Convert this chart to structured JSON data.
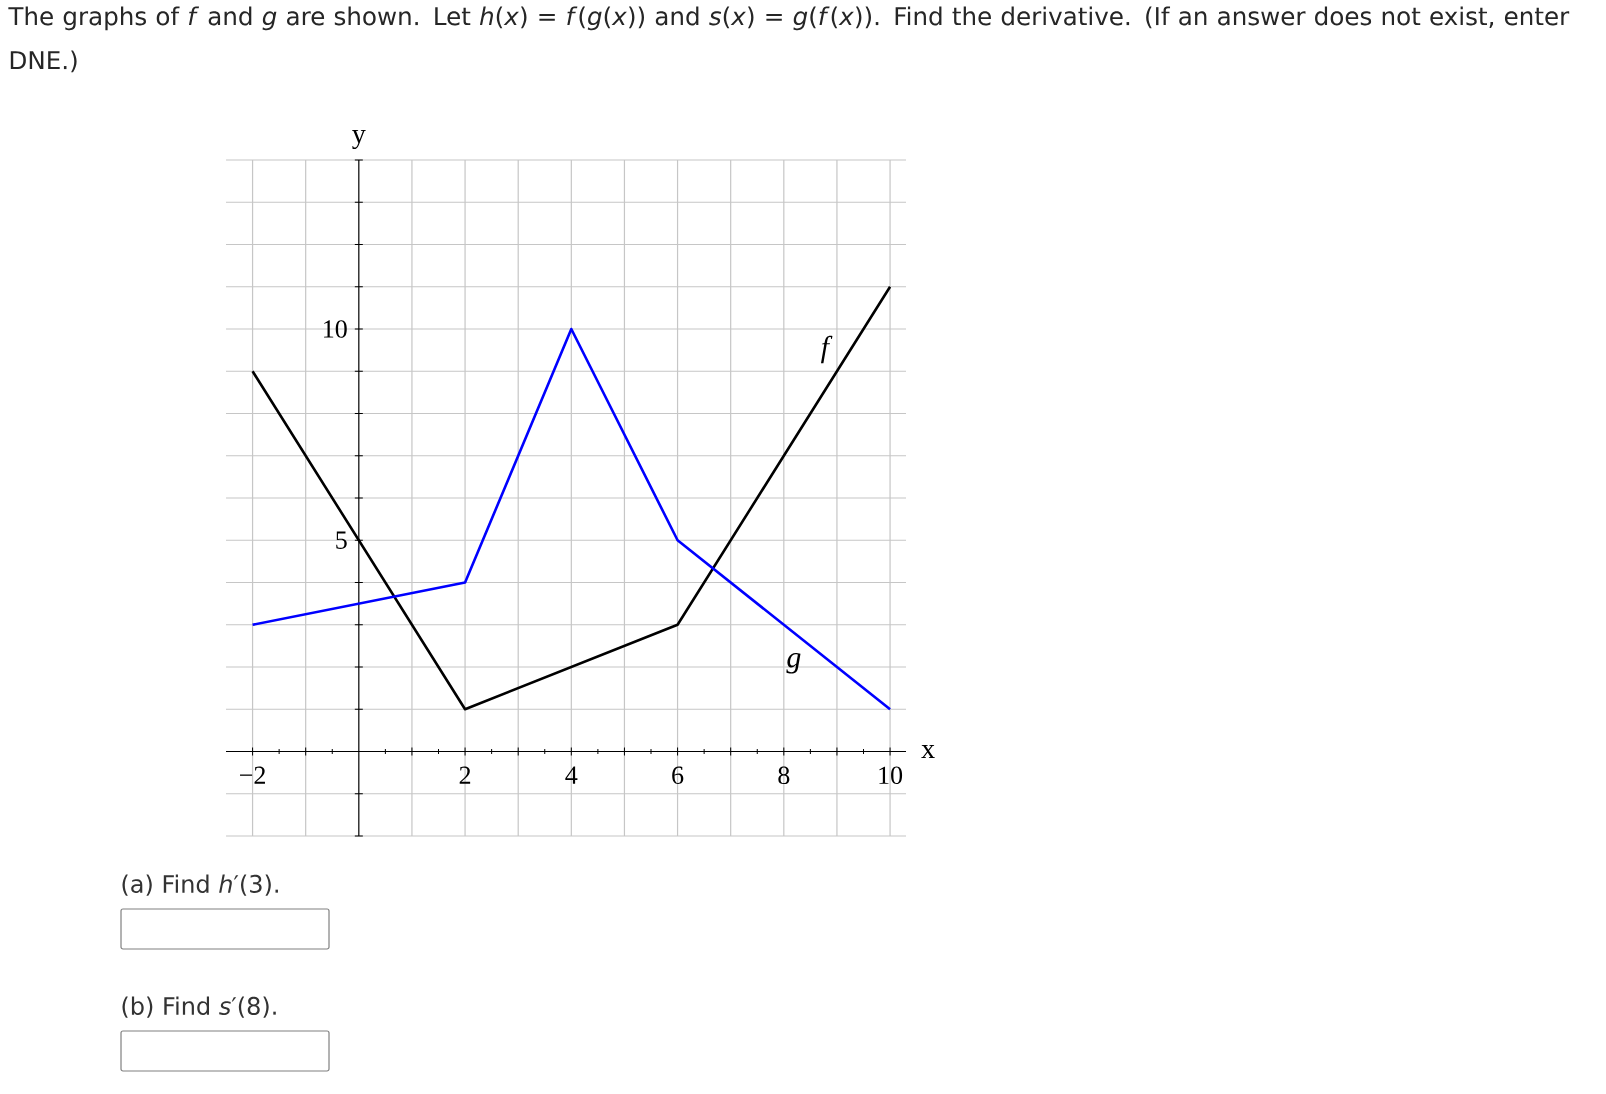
{
  "chart_data": {
    "type": "line",
    "title": "The graphs of *f* and *g* are shown. Let *h*(*x*) = *f*(*g*(*x*)) and *s*(*x*) = *g*(*f*(*x*)). Find the derivative. (If an answer does not exist, enter DNE.)",
    "xlabel": "x",
    "ylabel": "y",
    "series": [
      {
        "name": "f",
        "color": "#000000",
        "x": [
          -2,
          2,
          6,
          10
        ],
        "values": [
          9,
          1,
          3,
          11
        ]
      },
      {
        "name": "g",
        "color": "#0000ff",
        "x": [
          -2,
          2,
          4,
          6,
          10
        ],
        "values": [
          3,
          4,
          10,
          5,
          1
        ]
      }
    ],
    "xlim": [
      -2.5,
      10.3
    ],
    "ylim": [
      -2,
      14
    ],
    "xticks": [
      {
        "value": -2,
        "label": "−2"
      },
      {
        "value": -1,
        "label": null
      },
      {
        "value": 0,
        "label": null
      },
      {
        "value": 1,
        "label": null
      },
      2,
      {
        "value": 3,
        "label": null
      },
      4,
      {
        "value": 5,
        "label": null
      },
      6,
      {
        "value": 7,
        "label": null
      },
      8,
      {
        "value": 9,
        "label": null
      },
      10
    ],
    "yticks": [
      {
        "value": -2,
        "label": null
      },
      {
        "value": -1,
        "label": null
      },
      {
        "value": 0,
        "label": null
      },
      {
        "value": 1,
        "label": null
      },
      {
        "value": 2,
        "label": null
      },
      {
        "value": 3,
        "label": null
      },
      {
        "value": 4,
        "label": null
      },
      5,
      {
        "value": 6,
        "label": null
      },
      {
        "value": 7,
        "label": null
      },
      {
        "value": 8,
        "label": null
      },
      {
        "value": 9,
        "label": null
      },
      10,
      {
        "value": 11,
        "label": null
      },
      {
        "value": 12,
        "label": null
      },
      {
        "value": 13,
        "label": null
      },
      {
        "value": 14,
        "label": null
      }
    ],
    "grid": true,
    "marker": "none",
    "line_style": "solid",
    "annotations": [
      "(a) Find *h*′(3).",
      "(b) Find *s*′(8)."
    ]
  }
}
